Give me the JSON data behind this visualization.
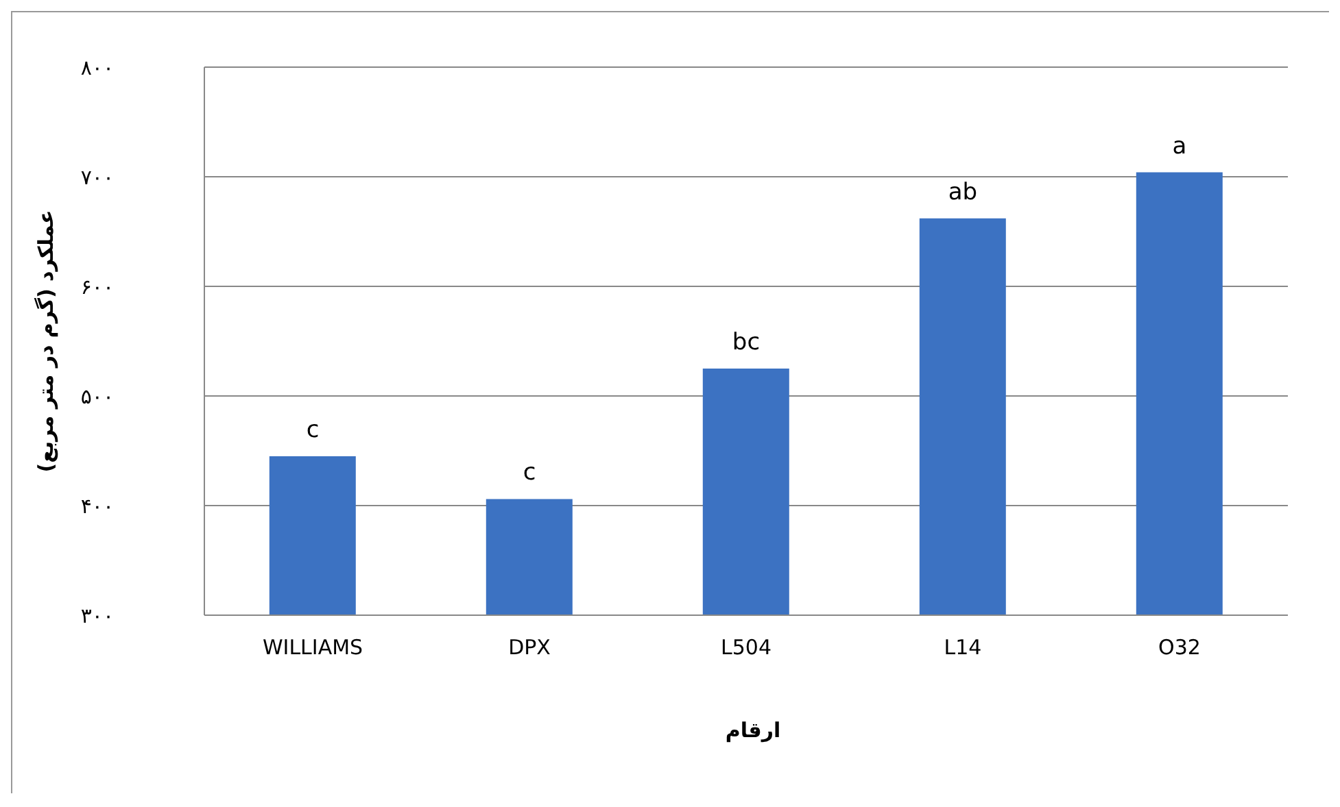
{
  "chart_data": {
    "type": "bar",
    "xlabel": "ارقام",
    "ylabel": "عملکرد (گرم در متر مربع)",
    "categories": [
      "WILLIAMS",
      "DPX",
      "L504",
      "L14",
      "O32"
    ],
    "values": [
      445,
      406,
      525,
      662,
      704
    ],
    "color": "#3c72c2",
    "ylim": [
      300,
      800
    ],
    "yticks": [
      {
        "value": 300,
        "label": "۳۰۰"
      },
      {
        "value": 400,
        "label": "۴۰۰"
      },
      {
        "value": 500,
        "label": "۵۰۰"
      },
      {
        "value": 600,
        "label": "۶۰۰"
      },
      {
        "value": 700,
        "label": "۷۰۰"
      },
      {
        "value": 800,
        "label": "۸۰۰"
      }
    ],
    "grid": "y",
    "annotations": [
      {
        "text": "c",
        "x": "WILLIAMS",
        "y": 445
      },
      {
        "text": "c",
        "x": "DPX",
        "y": 406
      },
      {
        "text": "bc",
        "x": "L504",
        "y": 525
      },
      {
        "text": "ab",
        "x": "L14",
        "y": 662
      },
      {
        "text": "a",
        "x": "O32",
        "y": 704
      }
    ]
  }
}
